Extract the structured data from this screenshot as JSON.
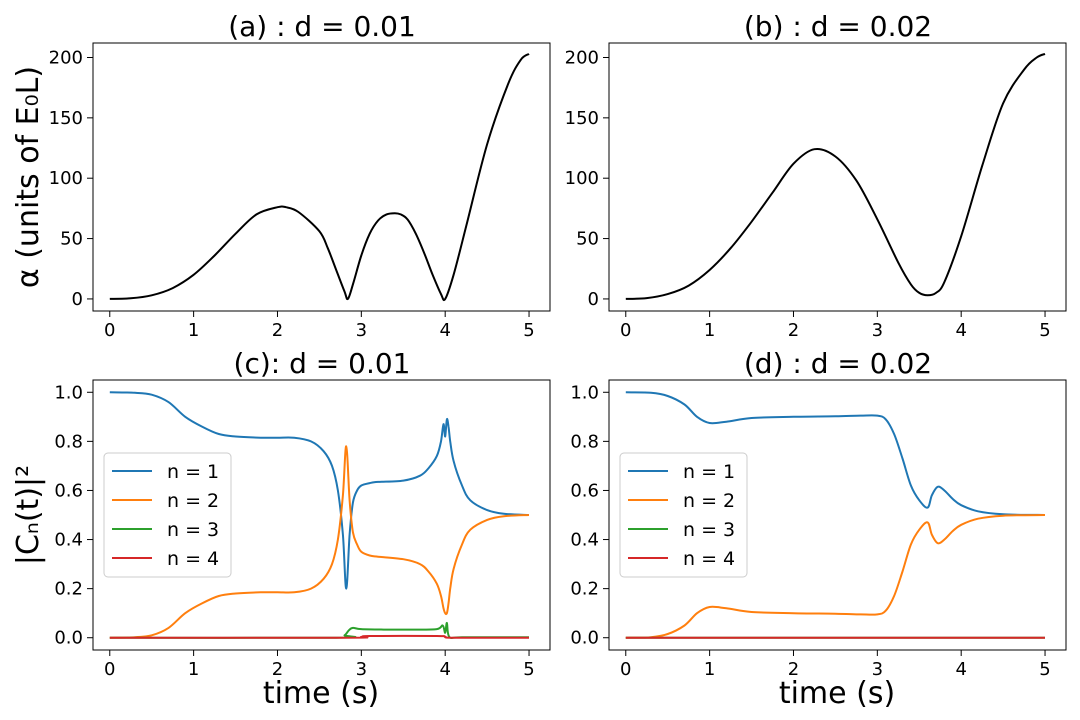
{
  "figure": {
    "ylabel_top": "α (units of E₀L)",
    "ylabel_bottom": "|Cₙ(t)|²",
    "xlabel": "time (s)"
  },
  "colors": {
    "n1": "#1f77b4",
    "n2": "#ff7f0e",
    "n3": "#2ca02c",
    "n4": "#d62728",
    "alpha": "#000000"
  },
  "chart_data": [
    {
      "id": "a",
      "type": "line",
      "title": "(a) : d = 0.01",
      "xlabel": "",
      "ylabel": "α (units of E₀L)",
      "xlim": [
        -0.2,
        5.25
      ],
      "ylim": [
        -10,
        212
      ],
      "xticks": [
        0,
        1,
        2,
        3,
        4,
        5
      ],
      "yticks": [
        0,
        50,
        100,
        150,
        200
      ],
      "series": [
        {
          "name": "alpha",
          "color": "#000000",
          "x": [
            0,
            0.25,
            0.5,
            0.75,
            1.0,
            1.25,
            1.5,
            1.75,
            2.0,
            2.1,
            2.25,
            2.5,
            2.6,
            2.7,
            2.8,
            2.84,
            2.9,
            3.0,
            3.1,
            3.2,
            3.3,
            3.4,
            3.47,
            3.55,
            3.65,
            3.75,
            3.85,
            3.95,
            4.0,
            4.1,
            4.25,
            4.5,
            4.75,
            4.9,
            5.0
          ],
          "y": [
            0,
            0.5,
            3,
            9,
            20,
            36,
            54,
            70,
            76,
            76,
            72,
            56,
            42,
            24,
            6,
            0,
            12,
            36,
            54,
            65,
            70,
            71,
            70,
            66,
            54,
            38,
            20,
            4,
            0,
            20,
            60,
            128,
            178,
            198,
            203
          ]
        }
      ]
    },
    {
      "id": "b",
      "type": "line",
      "title": "(b) : d = 0.02",
      "xlabel": "",
      "ylabel": "",
      "xlim": [
        -0.2,
        5.25
      ],
      "ylim": [
        -10,
        212
      ],
      "xticks": [
        0,
        1,
        2,
        3,
        4,
        5
      ],
      "yticks": [
        0,
        50,
        100,
        150,
        200
      ],
      "series": [
        {
          "name": "alpha",
          "color": "#000000",
          "x": [
            0,
            0.25,
            0.5,
            0.75,
            1.0,
            1.25,
            1.5,
            1.75,
            2.0,
            2.25,
            2.5,
            2.75,
            3.0,
            3.25,
            3.4,
            3.5,
            3.6,
            3.7,
            3.8,
            4.0,
            4.25,
            4.5,
            4.75,
            4.9,
            5.0
          ],
          "y": [
            0,
            0.7,
            4,
            11,
            24,
            42,
            64,
            88,
            112,
            124,
            118,
            98,
            66,
            30,
            12,
            5,
            3,
            5,
            14,
            52,
            110,
            162,
            190,
            200,
            203
          ]
        }
      ]
    },
    {
      "id": "c",
      "type": "line",
      "title": "(c): d = 0.01",
      "xlabel": "time (s)",
      "ylabel": "|Cₙ(t)|²",
      "xlim": [
        -0.2,
        5.25
      ],
      "ylim": [
        -0.05,
        1.05
      ],
      "xticks": [
        0,
        1,
        2,
        3,
        4,
        5
      ],
      "yticks": [
        0.0,
        0.2,
        0.4,
        0.6,
        0.8,
        1.0
      ],
      "legend": {
        "location": "center-left",
        "entries": [
          "n = 1",
          "n = 2",
          "n = 3",
          "n = 4"
        ]
      },
      "series": [
        {
          "name": "n = 1",
          "color": "#1f77b4",
          "x": [
            0,
            0.3,
            0.5,
            0.7,
            0.9,
            1.1,
            1.3,
            1.5,
            1.8,
            2.0,
            2.2,
            2.4,
            2.55,
            2.65,
            2.72,
            2.78,
            2.82,
            2.86,
            2.9,
            2.95,
            3.0,
            3.1,
            3.2,
            3.5,
            3.7,
            3.8,
            3.9,
            3.95,
            3.98,
            4.0,
            4.02,
            4.04,
            4.06,
            4.1,
            4.2,
            4.3,
            4.5,
            4.7,
            5.0
          ],
          "y": [
            1.0,
            0.998,
            0.99,
            0.96,
            0.9,
            0.86,
            0.83,
            0.82,
            0.815,
            0.815,
            0.815,
            0.8,
            0.76,
            0.7,
            0.6,
            0.42,
            0.2,
            0.42,
            0.55,
            0.6,
            0.62,
            0.63,
            0.635,
            0.64,
            0.66,
            0.69,
            0.74,
            0.8,
            0.87,
            0.82,
            0.89,
            0.86,
            0.8,
            0.72,
            0.62,
            0.56,
            0.52,
            0.505,
            0.5
          ]
        },
        {
          "name": "n = 2",
          "color": "#ff7f0e",
          "x": [
            0,
            0.3,
            0.5,
            0.7,
            0.9,
            1.1,
            1.3,
            1.5,
            1.8,
            2.0,
            2.2,
            2.4,
            2.55,
            2.65,
            2.72,
            2.78,
            2.82,
            2.86,
            2.9,
            2.95,
            3.0,
            3.1,
            3.2,
            3.5,
            3.7,
            3.8,
            3.9,
            3.95,
            3.98,
            4.0,
            4.02,
            4.04,
            4.06,
            4.1,
            4.2,
            4.3,
            4.5,
            4.7,
            5.0
          ],
          "y": [
            0.0,
            0.002,
            0.01,
            0.04,
            0.1,
            0.14,
            0.17,
            0.18,
            0.185,
            0.185,
            0.185,
            0.2,
            0.24,
            0.3,
            0.4,
            0.58,
            0.78,
            0.56,
            0.43,
            0.38,
            0.35,
            0.335,
            0.33,
            0.32,
            0.3,
            0.27,
            0.22,
            0.17,
            0.12,
            0.1,
            0.1,
            0.14,
            0.2,
            0.28,
            0.38,
            0.44,
            0.48,
            0.495,
            0.5
          ]
        },
        {
          "name": "n = 3",
          "color": "#2ca02c",
          "x": [
            0,
            2.7,
            2.8,
            2.85,
            2.9,
            3.0,
            3.3,
            3.6,
            3.9,
            3.97,
            4.0,
            4.02,
            4.05,
            4.2,
            5.0
          ],
          "y": [
            0.0,
            0.0,
            0.01,
            0.03,
            0.04,
            0.035,
            0.033,
            0.033,
            0.035,
            0.05,
            0.02,
            0.06,
            0.003,
            0.002,
            0.002
          ]
        },
        {
          "name": "n = 4",
          "color": "#d62728",
          "x": [
            0,
            2.8,
            3.0,
            3.1,
            3.9,
            4.0,
            4.1,
            5.0
          ],
          "y": [
            0.0,
            0.0,
            0.003,
            0.007,
            0.007,
            0.004,
            0.0,
            0.0
          ]
        }
      ]
    },
    {
      "id": "d",
      "type": "line",
      "title": "(d) : d = 0.02",
      "xlabel": "time (s)",
      "ylabel": "",
      "xlim": [
        -0.2,
        5.25
      ],
      "ylim": [
        -0.05,
        1.05
      ],
      "xticks": [
        0,
        1,
        2,
        3,
        4,
        5
      ],
      "yticks": [
        0.0,
        0.2,
        0.4,
        0.6,
        0.8,
        1.0
      ],
      "legend": {
        "location": "center-left",
        "entries": [
          "n = 1",
          "n = 2",
          "n = 3",
          "n = 4"
        ]
      },
      "series": [
        {
          "name": "n = 1",
          "color": "#1f77b4",
          "x": [
            0,
            0.3,
            0.5,
            0.7,
            0.85,
            1.0,
            1.2,
            1.5,
            2.0,
            2.5,
            2.8,
            3.0,
            3.1,
            3.2,
            3.3,
            3.4,
            3.5,
            3.6,
            3.65,
            3.72,
            3.8,
            3.9,
            4.0,
            4.2,
            4.5,
            5.0
          ],
          "y": [
            1.0,
            0.998,
            0.985,
            0.95,
            0.9,
            0.875,
            0.88,
            0.895,
            0.9,
            0.902,
            0.905,
            0.905,
            0.89,
            0.83,
            0.73,
            0.62,
            0.56,
            0.53,
            0.58,
            0.615,
            0.6,
            0.565,
            0.54,
            0.515,
            0.503,
            0.5
          ]
        },
        {
          "name": "n = 2",
          "color": "#ff7f0e",
          "x": [
            0,
            0.3,
            0.5,
            0.7,
            0.85,
            1.0,
            1.2,
            1.5,
            2.0,
            2.5,
            2.8,
            3.0,
            3.1,
            3.2,
            3.3,
            3.4,
            3.5,
            3.6,
            3.65,
            3.72,
            3.8,
            3.9,
            4.0,
            4.2,
            4.5,
            5.0
          ],
          "y": [
            0.0,
            0.002,
            0.015,
            0.05,
            0.1,
            0.125,
            0.12,
            0.105,
            0.1,
            0.098,
            0.095,
            0.095,
            0.11,
            0.17,
            0.27,
            0.38,
            0.44,
            0.47,
            0.42,
            0.385,
            0.4,
            0.435,
            0.46,
            0.485,
            0.497,
            0.5
          ]
        },
        {
          "name": "n = 3",
          "color": "#2ca02c",
          "x": [
            0,
            5.0
          ],
          "y": [
            0.0,
            0.0
          ]
        },
        {
          "name": "n = 4",
          "color": "#d62728",
          "x": [
            0,
            5.0
          ],
          "y": [
            0.0,
            0.0
          ]
        }
      ]
    }
  ]
}
